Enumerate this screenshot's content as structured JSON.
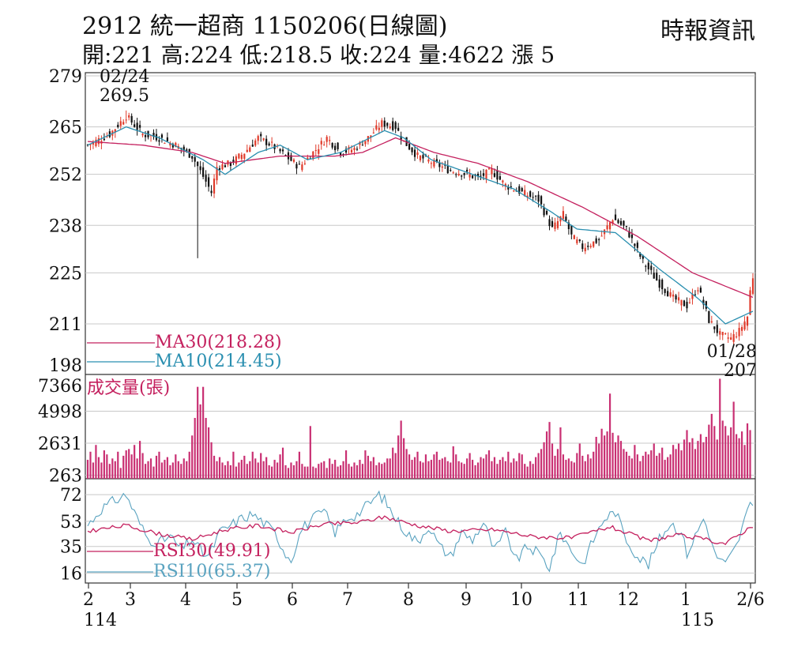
{
  "header": {
    "title": "2912 統一超商 1150206(日線圖)",
    "ohlc": "開:221 高:224 低:218.5 收:224 量:4622 漲 5",
    "source": "時報資訊"
  },
  "chart_data": [
    {
      "type": "candlestick",
      "panel": "price",
      "y_ticks": [
        279,
        265,
        252,
        238,
        225,
        211,
        198
      ],
      "ylim": [
        198,
        279
      ],
      "high_annotation": {
        "date": "02/24",
        "value": "269.5"
      },
      "low_annotation": {
        "date": "01/28",
        "value": "207"
      },
      "legend": [
        {
          "name": "MA30",
          "label": "MA30(218.28)",
          "color": "#c4205e"
        },
        {
          "name": "MA10",
          "label": "MA10(214.45)",
          "color": "#2a8fb0"
        }
      ],
      "close_anchors": [
        [
          0,
          260
        ],
        [
          8,
          263
        ],
        [
          14,
          268
        ],
        [
          20,
          263
        ],
        [
          26,
          262
        ],
        [
          32,
          260
        ],
        [
          38,
          257
        ],
        [
          43,
          250
        ],
        [
          45,
          247
        ],
        [
          47,
          254
        ],
        [
          52,
          255
        ],
        [
          57,
          258
        ],
        [
          62,
          262
        ],
        [
          67,
          260
        ],
        [
          72,
          257
        ],
        [
          77,
          254
        ],
        [
          82,
          258
        ],
        [
          87,
          262
        ],
        [
          92,
          258
        ],
        [
          97,
          259
        ],
        [
          102,
          262
        ],
        [
          107,
          266
        ],
        [
          112,
          265
        ],
        [
          115,
          261
        ],
        [
          120,
          257
        ],
        [
          126,
          255
        ],
        [
          132,
          253
        ],
        [
          138,
          252
        ],
        [
          142,
          251
        ],
        [
          147,
          253
        ],
        [
          152,
          249
        ],
        [
          158,
          247
        ],
        [
          164,
          245
        ],
        [
          169,
          237
        ],
        [
          173,
          241
        ],
        [
          176,
          235
        ],
        [
          180,
          232
        ],
        [
          186,
          234
        ],
        [
          191,
          240
        ],
        [
          196,
          237
        ],
        [
          202,
          228
        ],
        [
          208,
          222
        ],
        [
          213,
          218
        ],
        [
          218,
          216
        ],
        [
          222,
          221
        ],
        [
          226,
          212
        ],
        [
          230,
          208
        ],
        [
          234,
          207
        ],
        [
          237,
          209
        ],
        [
          240,
          213
        ],
        [
          241,
          220
        ],
        [
          242,
          224
        ]
      ],
      "ma30_anchors": [
        [
          0,
          261
        ],
        [
          20,
          260
        ],
        [
          38,
          258
        ],
        [
          50,
          255
        ],
        [
          70,
          257
        ],
        [
          90,
          257
        ],
        [
          100,
          258
        ],
        [
          112,
          262
        ],
        [
          126,
          258
        ],
        [
          142,
          255
        ],
        [
          160,
          250
        ],
        [
          180,
          243
        ],
        [
          200,
          235
        ],
        [
          220,
          225
        ],
        [
          242,
          218.28
        ]
      ],
      "ma10_anchors": [
        [
          0,
          260
        ],
        [
          14,
          265
        ],
        [
          26,
          262
        ],
        [
          42,
          256
        ],
        [
          50,
          252
        ],
        [
          62,
          258
        ],
        [
          70,
          260
        ],
        [
          80,
          256
        ],
        [
          92,
          258
        ],
        [
          108,
          264
        ],
        [
          115,
          262
        ],
        [
          125,
          256
        ],
        [
          140,
          252
        ],
        [
          155,
          248
        ],
        [
          168,
          242
        ],
        [
          178,
          237
        ],
        [
          192,
          236
        ],
        [
          208,
          226
        ],
        [
          222,
          218
        ],
        [
          232,
          211
        ],
        [
          242,
          214.45
        ]
      ]
    },
    {
      "type": "bar",
      "panel": "volume",
      "label": "成交量(張)",
      "y_ticks": [
        7366,
        4998,
        2631,
        263
      ],
      "ylim": [
        0,
        7366
      ],
      "values_estimated": [
        1400,
        2000,
        1200,
        2500,
        1600,
        1200,
        2100,
        1800,
        1100,
        1500,
        1300,
        2000,
        800,
        1700,
        2100,
        2200,
        1800,
        2500,
        1500,
        2800,
        1900,
        1100,
        1300,
        1500,
        900,
        1700,
        2000,
        1200,
        1400,
        1600,
        1000,
        1200,
        1800,
        1300,
        1100,
        1500,
        1300,
        2000,
        3200,
        4500,
        6800,
        5500,
        6800,
        4500,
        3800,
        2700,
        1700,
        1300,
        1600,
        1200,
        1000,
        1300,
        1000,
        2000,
        900,
        1200,
        1400,
        1700,
        1100,
        1300,
        2000,
        1500,
        1200,
        1900,
        1300,
        1600,
        1000,
        900,
        1400,
        1200,
        1800,
        2300,
        1000,
        800,
        1200,
        1000,
        1300,
        2000,
        1100,
        900,
        900,
        3900,
        900,
        800,
        1100,
        1200,
        1300,
        800,
        1500,
        1100,
        1400,
        900,
        1000,
        1300,
        2100,
        1100,
        900,
        1200,
        1000,
        1400,
        1100,
        2100,
        1700,
        1300,
        1600,
        1000,
        1200,
        1100,
        1200,
        1500,
        1500,
        2300,
        1900,
        3200,
        4300,
        3000,
        2200,
        1800,
        1400,
        1600,
        2000,
        1300,
        1200,
        1800,
        1300,
        1400,
        1800,
        2000,
        1400,
        1500,
        1600,
        1300,
        1200,
        2400,
        1800,
        1300,
        1200,
        1100,
        1500,
        1900,
        1400,
        1000,
        1200,
        1600,
        1500,
        1800,
        2100,
        1300,
        1600,
        1100,
        1400,
        1600,
        1300,
        2000,
        1200,
        1500,
        1300,
        1900,
        1800,
        1100,
        900,
        1300,
        1100,
        1600,
        1900,
        2200,
        2700,
        3500,
        4200,
        2600,
        1700,
        2200,
        3800,
        1800,
        1400,
        1500,
        1300,
        1200,
        1900,
        2600,
        1700,
        1300,
        1800,
        1500,
        2000,
        3100,
        2600,
        3700,
        3200,
        3500,
        6300,
        3400,
        2700,
        3200,
        2800,
        2200,
        2000,
        1700,
        1500,
        2500,
        1800,
        1300,
        1700,
        2000,
        1800,
        2100,
        2600,
        1700,
        1900,
        2300,
        1400,
        1600,
        1800,
        2500,
        2200,
        2600,
        2100,
        2900,
        3600,
        2700,
        3000,
        2200,
        2800,
        3300,
        2700,
        3100,
        4000,
        4800,
        3900,
        2900,
        7400,
        4300,
        3900,
        3200,
        3800,
        5700,
        3300,
        3000,
        3500,
        2500,
        4100,
        3600
      ]
    },
    {
      "type": "line",
      "panel": "rsi",
      "y_ticks": [
        72,
        53,
        35,
        16
      ],
      "ylim": [
        10,
        80
      ],
      "legend": [
        {
          "name": "RSI30",
          "label": "RSI30(49.91)",
          "color": "#c4205e"
        },
        {
          "name": "RSI10",
          "label": "RSI10(65.37)",
          "color": "#5aa3c0"
        }
      ],
      "rsi10_anchors": [
        [
          0,
          50
        ],
        [
          5,
          62
        ],
        [
          10,
          68
        ],
        [
          14,
          72
        ],
        [
          18,
          55
        ],
        [
          22,
          40
        ],
        [
          26,
          38
        ],
        [
          30,
          42
        ],
        [
          34,
          33
        ],
        [
          38,
          40
        ],
        [
          42,
          30
        ],
        [
          44,
          28
        ],
        [
          48,
          45
        ],
        [
          52,
          50
        ],
        [
          56,
          55
        ],
        [
          60,
          58
        ],
        [
          64,
          52
        ],
        [
          68,
          45
        ],
        [
          72,
          30
        ],
        [
          74,
          26
        ],
        [
          78,
          48
        ],
        [
          82,
          55
        ],
        [
          86,
          60
        ],
        [
          90,
          45
        ],
        [
          94,
          55
        ],
        [
          98,
          58
        ],
        [
          102,
          65
        ],
        [
          106,
          72
        ],
        [
          108,
          68
        ],
        [
          112,
          55
        ],
        [
          116,
          45
        ],
        [
          120,
          38
        ],
        [
          124,
          50
        ],
        [
          128,
          35
        ],
        [
          132,
          28
        ],
        [
          136,
          45
        ],
        [
          140,
          40
        ],
        [
          144,
          52
        ],
        [
          148,
          32
        ],
        [
          152,
          45
        ],
        [
          156,
          25
        ],
        [
          160,
          35
        ],
        [
          164,
          30
        ],
        [
          168,
          20
        ],
        [
          172,
          45
        ],
        [
          176,
          32
        ],
        [
          180,
          22
        ],
        [
          184,
          40
        ],
        [
          188,
          55
        ],
        [
          192,
          60
        ],
        [
          196,
          40
        ],
        [
          200,
          28
        ],
        [
          204,
          22
        ],
        [
          208,
          40
        ],
        [
          212,
          52
        ],
        [
          216,
          45
        ],
        [
          218,
          30
        ],
        [
          220,
          38
        ],
        [
          224,
          55
        ],
        [
          226,
          45
        ],
        [
          228,
          30
        ],
        [
          232,
          22
        ],
        [
          236,
          35
        ],
        [
          240,
          60
        ],
        [
          242,
          65.37
        ]
      ],
      "rsi30_anchors": [
        [
          0,
          46
        ],
        [
          14,
          50
        ],
        [
          26,
          44
        ],
        [
          38,
          40
        ],
        [
          50,
          47
        ],
        [
          62,
          50
        ],
        [
          74,
          45
        ],
        [
          86,
          51
        ],
        [
          98,
          52
        ],
        [
          108,
          56
        ],
        [
          120,
          50
        ],
        [
          132,
          46
        ],
        [
          148,
          47
        ],
        [
          162,
          42
        ],
        [
          176,
          41
        ],
        [
          190,
          49
        ],
        [
          204,
          39
        ],
        [
          214,
          43
        ],
        [
          222,
          41
        ],
        [
          232,
          37
        ],
        [
          242,
          49.91
        ]
      ]
    }
  ],
  "x_axis": {
    "tick_labels": [
      "2",
      "3",
      "4",
      "5",
      "6",
      "7",
      "8",
      "9",
      "10",
      "11",
      "12",
      "1",
      "2/6"
    ],
    "year_labels": [
      {
        "label": "114",
        "month_index": 0
      },
      {
        "label": "115",
        "month_index": 11
      }
    ]
  }
}
